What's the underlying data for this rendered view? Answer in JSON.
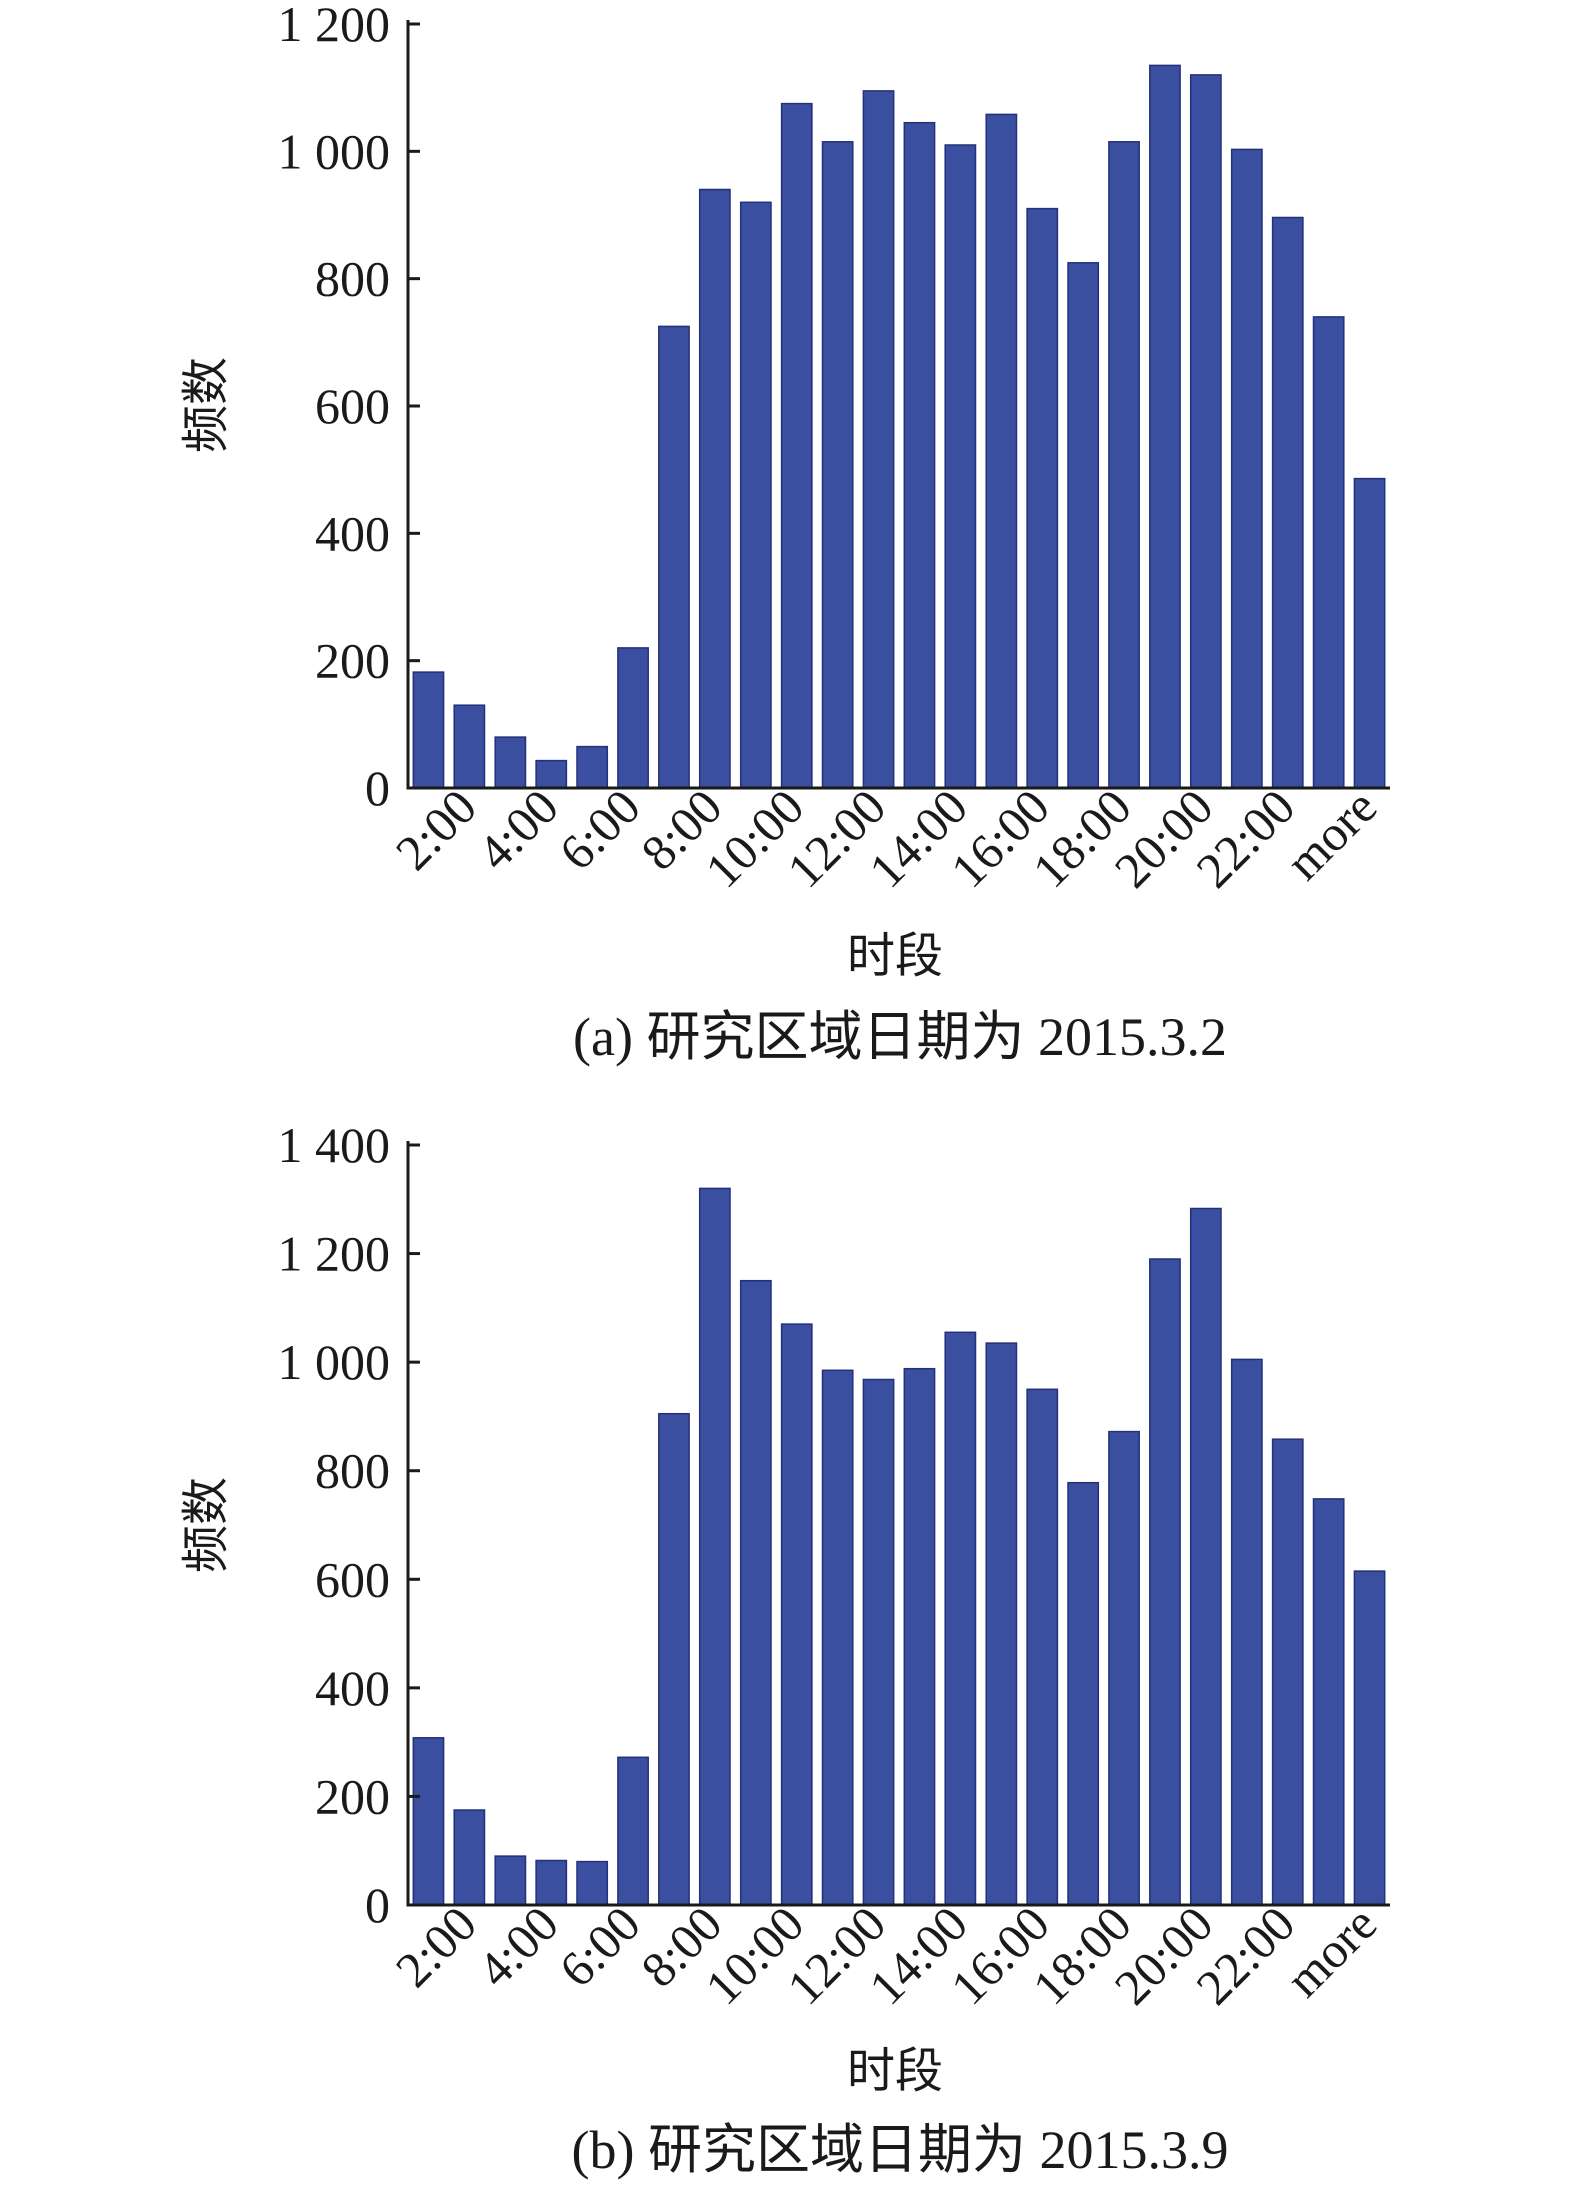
{
  "charts": [
    {
      "caption": "(a) 研究区域日期为 2015.3.2",
      "chart_data": {
        "type": "bar",
        "xlabel": "时段",
        "ylabel": "频数",
        "ylim": [
          0,
          1200
        ],
        "yticks": [
          0,
          200,
          400,
          600,
          800,
          1000,
          1200
        ],
        "ytick_labels": [
          "0",
          "200",
          "400",
          "600",
          "800",
          "1 000",
          "1 200"
        ],
        "xtick_labels": [
          "2:00",
          "4:00",
          "6:00",
          "8:00",
          "10:00",
          "12:00",
          "14:00",
          "16:00",
          "18:00",
          "20:00",
          "22:00",
          "more"
        ],
        "values": [
          182,
          130,
          80,
          43,
          65,
          220,
          725,
          940,
          920,
          1075,
          1015,
          1095,
          1045,
          1010,
          1058,
          910,
          825,
          1015,
          1135,
          1120,
          1003,
          896,
          740,
          486
        ],
        "grid": false,
        "bar_color": "#3b4fa0"
      }
    },
    {
      "caption": "(b) 研究区域日期为 2015.3.9",
      "chart_data": {
        "type": "bar",
        "xlabel": "时段",
        "ylabel": "频数",
        "ylim": [
          0,
          1400
        ],
        "yticks": [
          0,
          200,
          400,
          600,
          800,
          1000,
          1200,
          1400
        ],
        "ytick_labels": [
          "0",
          "200",
          "400",
          "600",
          "800",
          "1 000",
          "1 200",
          "1 400"
        ],
        "xtick_labels": [
          "2:00",
          "4:00",
          "6:00",
          "8:00",
          "10:00",
          "12:00",
          "14:00",
          "16:00",
          "18:00",
          "20:00",
          "22:00",
          "more"
        ],
        "values": [
          308,
          175,
          90,
          82,
          80,
          272,
          905,
          1320,
          1150,
          1070,
          985,
          968,
          988,
          1055,
          1035,
          950,
          778,
          872,
          1190,
          1283,
          1005,
          858,
          748,
          615
        ],
        "grid": false,
        "bar_color": "#3b4fa0"
      }
    }
  ]
}
